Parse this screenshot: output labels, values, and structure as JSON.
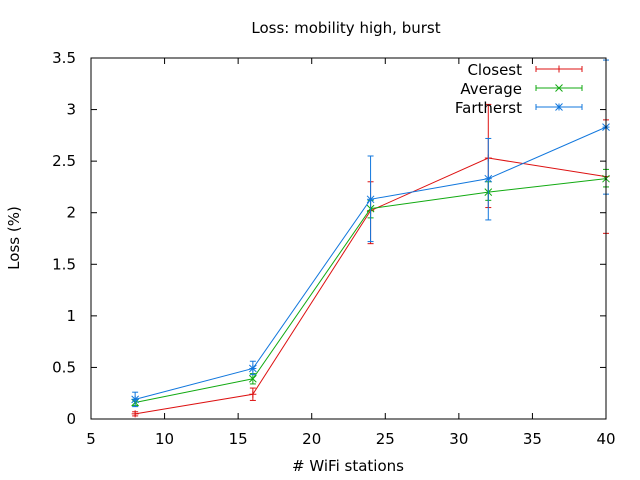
{
  "chart_data": {
    "type": "line",
    "title": "Loss: mobility high, burst",
    "xlabel": "# WiFi stations",
    "ylabel": "Loss (%)",
    "xlim": [
      5,
      40
    ],
    "ylim": [
      0,
      3.5
    ],
    "xticks": [
      5,
      10,
      15,
      20,
      25,
      30,
      35,
      40
    ],
    "yticks": [
      0,
      0.5,
      1,
      1.5,
      2,
      2.5,
      3,
      3.5
    ],
    "grid": false,
    "legend_position": "top-right",
    "x": [
      8,
      16,
      24,
      32,
      40
    ],
    "series": [
      {
        "name": "Closest",
        "color": "#dd1111",
        "marker": "plus",
        "values": [
          0.05,
          0.24,
          2.02,
          2.53,
          2.35
        ],
        "err_low": [
          0.03,
          0.18,
          1.7,
          2.05,
          1.8
        ],
        "err_high": [
          0.07,
          0.3,
          2.3,
          3.05,
          2.9
        ]
      },
      {
        "name": "Average",
        "color": "#11aa11",
        "marker": "x",
        "values": [
          0.16,
          0.39,
          2.04,
          2.2,
          2.33
        ],
        "err_low": [
          0.13,
          0.34,
          1.95,
          2.12,
          2.25
        ],
        "err_high": [
          0.19,
          0.44,
          2.12,
          2.3,
          2.42
        ]
      },
      {
        "name": "Fartherst",
        "color": "#1177dd",
        "marker": "star",
        "values": [
          0.19,
          0.49,
          2.13,
          2.33,
          2.83
        ],
        "err_low": [
          0.12,
          0.43,
          1.72,
          1.93,
          2.18
        ],
        "err_high": [
          0.26,
          0.56,
          2.55,
          2.72,
          3.48
        ]
      }
    ]
  }
}
